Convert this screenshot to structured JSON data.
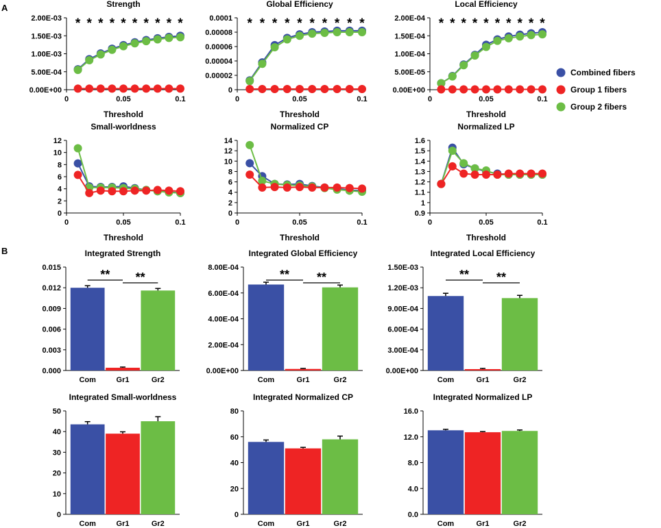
{
  "figure": {
    "panels": [
      "A",
      "B"
    ],
    "colors": {
      "combined": "#3a50a5",
      "group1": "#ee2424",
      "group2": "#6cbd45"
    },
    "legend": [
      {
        "label": "Combined fibers",
        "key": "combined"
      },
      {
        "label": "Group 1 fibers",
        "key": "group1"
      },
      {
        "label": "Group 2 fibers",
        "key": "group2"
      }
    ]
  },
  "chart_data": [
    {
      "type": "line",
      "title": "Strength",
      "xlabel": "Threshold",
      "ylabel": "",
      "x": [
        0.01,
        0.02,
        0.03,
        0.04,
        0.05,
        0.06,
        0.07,
        0.08,
        0.09,
        0.1
      ],
      "xlim": [
        0,
        0.1
      ],
      "xticks": [
        "0",
        "0.05",
        "0.1"
      ],
      "ylim": [
        0,
        0.002
      ],
      "yticks": [
        "0.00E+00",
        "5.00E-04",
        "1.00E-03",
        "1.50E-03",
        "2.00E-03"
      ],
      "star": "*",
      "stars": 10,
      "series": [
        {
          "name": "Combined fibers",
          "key": "combined",
          "values": [
            0.00057,
            0.00085,
            0.00101,
            0.00114,
            0.00124,
            0.00132,
            0.00138,
            0.00143,
            0.00147,
            0.0015
          ]
        },
        {
          "name": "Group 1 fibers",
          "key": "group1",
          "values": [
            3e-05,
            3e-05,
            3e-05,
            3e-05,
            3e-05,
            3e-05,
            3e-05,
            3e-05,
            3e-05,
            3e-05
          ]
        },
        {
          "name": "Group 2 fibers",
          "key": "group2",
          "values": [
            0.00055,
            0.00082,
            0.00098,
            0.00111,
            0.00121,
            0.00129,
            0.00135,
            0.0014,
            0.00144,
            0.00146
          ]
        }
      ]
    },
    {
      "type": "line",
      "title": "Global Efficiency",
      "xlabel": "Threshold",
      "ylabel": "",
      "x": [
        0.01,
        0.02,
        0.03,
        0.04,
        0.05,
        0.06,
        0.07,
        0.08,
        0.09,
        0.1
      ],
      "xlim": [
        0,
        0.1
      ],
      "xticks": [
        "0",
        "0.05",
        "0.1"
      ],
      "ylim": [
        0,
        0.0001
      ],
      "yticks": [
        "0",
        "0.00002",
        "0.00004",
        "0.00006",
        "0.00008",
        "0.0001"
      ],
      "star": "*",
      "stars": 10,
      "series": [
        {
          "name": "Combined fibers",
          "key": "combined",
          "values": [
            1.3e-05,
            3.8e-05,
            6.2e-05,
            7.2e-05,
            7.7e-05,
            8e-05,
            8.1e-05,
            8.2e-05,
            8.2e-05,
            8.2e-05
          ]
        },
        {
          "name": "Group 1 fibers",
          "key": "group1",
          "values": [
            1e-06,
            1e-06,
            1e-06,
            1e-06,
            1e-06,
            1e-06,
            1e-06,
            1e-06,
            1e-06,
            1e-06
          ]
        },
        {
          "name": "Group 2 fibers",
          "key": "group2",
          "values": [
            1.2e-05,
            3.6e-05,
            5.9e-05,
            7e-05,
            7.5e-05,
            7.8e-05,
            7.9e-05,
            8e-05,
            8e-05,
            8e-05
          ]
        }
      ]
    },
    {
      "type": "line",
      "title": "Local Efficiency",
      "xlabel": "Threshold",
      "ylabel": "",
      "x": [
        0.01,
        0.02,
        0.03,
        0.04,
        0.05,
        0.06,
        0.07,
        0.08,
        0.09,
        0.1
      ],
      "xlim": [
        0,
        0.1
      ],
      "xticks": [
        "0",
        "0.05",
        "0.1"
      ],
      "ylim": [
        0,
        0.0002
      ],
      "yticks": [
        "0.00E+00",
        "5.00E-05",
        "1.00E-04",
        "1.50E-04",
        "2.00E-04"
      ],
      "star": "*",
      "stars": 10,
      "series": [
        {
          "name": "Combined fibers",
          "key": "combined",
          "values": [
            1.8e-05,
            3.8e-05,
            7e-05,
            9.7e-05,
            0.000125,
            0.00014,
            0.000148,
            0.000153,
            0.000157,
            0.00016
          ]
        },
        {
          "name": "Group 1 fibers",
          "key": "group1",
          "values": [
            1e-06,
            1e-06,
            1e-06,
            1e-06,
            1e-06,
            1e-06,
            1e-06,
            1e-06,
            1e-06,
            1e-06
          ]
        },
        {
          "name": "Group 2 fibers",
          "key": "group2",
          "values": [
            1.8e-05,
            3.7e-05,
            6.8e-05,
            9.5e-05,
            0.000119,
            0.000136,
            0.000143,
            0.000148,
            0.000152,
            0.000154
          ]
        }
      ]
    },
    {
      "type": "line",
      "title": "Small-worldness",
      "xlabel": "Threshold",
      "ylabel": "",
      "x": [
        0.01,
        0.02,
        0.03,
        0.04,
        0.05,
        0.06,
        0.07,
        0.08,
        0.09,
        0.1
      ],
      "xlim": [
        0,
        0.1
      ],
      "xticks": [
        "0",
        "0.05",
        "0.1"
      ],
      "ylim": [
        0,
        12
      ],
      "yticks": [
        "0",
        "2",
        "4",
        "6",
        "8",
        "10",
        "12"
      ],
      "star": "*",
      "stars": 0,
      "series": [
        {
          "name": "Combined fibers",
          "key": "combined",
          "values": [
            8.2,
            4.4,
            4.3,
            4.3,
            4.4,
            4.1,
            3.8,
            3.6,
            3.5,
            3.3
          ]
        },
        {
          "name": "Group 1 fibers",
          "key": "group1",
          "values": [
            6.3,
            3.3,
            3.7,
            3.6,
            3.6,
            3.7,
            3.7,
            3.8,
            3.7,
            3.6
          ]
        },
        {
          "name": "Group 2 fibers",
          "key": "group2",
          "values": [
            10.7,
            4.2,
            4.2,
            4.2,
            4.1,
            4.0,
            3.8,
            3.6,
            3.4,
            3.3
          ]
        }
      ]
    },
    {
      "type": "line",
      "title": "Normalized CP",
      "xlabel": "Threshold",
      "ylabel": "",
      "x": [
        0.01,
        0.02,
        0.03,
        0.04,
        0.05,
        0.06,
        0.07,
        0.08,
        0.09,
        0.1
      ],
      "xlim": [
        0,
        0.1
      ],
      "xticks": [
        "0",
        "0.05",
        "0.1"
      ],
      "ylim": [
        0,
        14
      ],
      "yticks": [
        "0",
        "2",
        "4",
        "6",
        "8",
        "10",
        "12",
        "14"
      ],
      "star": "*",
      "stars": 0,
      "series": [
        {
          "name": "Combined fibers",
          "key": "combined",
          "values": [
            9.6,
            7.1,
            5.6,
            5.5,
            5.6,
            5.2,
            4.9,
            4.7,
            4.4,
            4.3
          ]
        },
        {
          "name": "Group 1 fibers",
          "key": "group1",
          "values": [
            7.4,
            4.9,
            5.0,
            4.9,
            5.0,
            4.9,
            4.9,
            4.9,
            4.8,
            4.7
          ]
        },
        {
          "name": "Group 2 fibers",
          "key": "group2",
          "values": [
            13.1,
            6.2,
            5.6,
            5.4,
            5.3,
            5.1,
            4.8,
            4.5,
            4.3,
            4.1
          ]
        }
      ]
    },
    {
      "type": "line",
      "title": "Normalized LP",
      "xlabel": "Threshold",
      "ylabel": "",
      "x": [
        0.01,
        0.02,
        0.03,
        0.04,
        0.05,
        0.06,
        0.07,
        0.08,
        0.09,
        0.1
      ],
      "xlim": [
        0,
        0.1
      ],
      "xticks": [
        "0",
        "0.05",
        "0.1"
      ],
      "ylim": [
        0.9,
        1.6
      ],
      "yticks": [
        "0.9",
        "1",
        "1.1",
        "1.2",
        "1.3",
        "1.4",
        "1.5",
        "1.6"
      ],
      "star": "*",
      "stars": 0,
      "series": [
        {
          "name": "Combined fibers",
          "key": "combined",
          "values": [
            1.18,
            1.53,
            1.37,
            1.33,
            1.3,
            1.28,
            1.27,
            1.27,
            1.27,
            1.27
          ]
        },
        {
          "name": "Group 1 fibers",
          "key": "group1",
          "values": [
            1.18,
            1.35,
            1.28,
            1.27,
            1.27,
            1.27,
            1.28,
            1.28,
            1.28,
            1.28
          ]
        },
        {
          "name": "Group 2 fibers",
          "key": "group2",
          "values": [
            1.18,
            1.5,
            1.38,
            1.33,
            1.31,
            1.27,
            1.27,
            1.27,
            1.27,
            1.27
          ]
        }
      ]
    },
    {
      "type": "bar",
      "title": "Integrated Strength",
      "categories": [
        "Com",
        "Gr1",
        "Gr2"
      ],
      "keys": [
        "combined",
        "group1",
        "group2"
      ],
      "values": [
        0.012,
        0.0004,
        0.0116
      ],
      "errors": [
        0.0003,
        0.0001,
        0.0003
      ],
      "ylim": [
        0,
        0.015
      ],
      "yticks": [
        "0.000",
        "0.003",
        "0.006",
        "0.009",
        "0.012",
        "0.015"
      ],
      "significance": [
        "**",
        "**"
      ]
    },
    {
      "type": "bar",
      "title": "Integrated Global Efficiency",
      "categories": [
        "Com",
        "Gr1",
        "Gr2"
      ],
      "keys": [
        "combined",
        "group1",
        "group2"
      ],
      "values": [
        0.000665,
        1.2e-05,
        0.000643
      ],
      "errors": [
        1.8e-05,
        4e-06,
        1.8e-05
      ],
      "ylim": [
        0,
        0.0008
      ],
      "yticks": [
        "0.00E+00",
        "2.00E-04",
        "4.00E-04",
        "6.00E-04",
        "8.00E-04"
      ],
      "significance": [
        "**",
        "**"
      ]
    },
    {
      "type": "bar",
      "title": "Integrated Local Efficiency",
      "categories": [
        "Com",
        "Gr1",
        "Gr2"
      ],
      "keys": [
        "combined",
        "group1",
        "group2"
      ],
      "values": [
        0.00108,
        2e-05,
        0.00105
      ],
      "errors": [
        4e-05,
        1e-05,
        4e-05
      ],
      "ylim": [
        0,
        0.0015
      ],
      "yticks": [
        "0.00E+00",
        "3.00E-04",
        "6.00E-04",
        "9.00E-04",
        "1.20E-03",
        "1.50E-03"
      ],
      "significance": [
        "**",
        "**"
      ]
    },
    {
      "type": "bar",
      "title": "Integrated Small-worldness",
      "categories": [
        "Com",
        "Gr1",
        "Gr2"
      ],
      "keys": [
        "combined",
        "group1",
        "group2"
      ],
      "values": [
        43.5,
        39.0,
        45.0
      ],
      "errors": [
        1.3,
        0.9,
        2.2
      ],
      "ylim": [
        0,
        50
      ],
      "yticks": [
        "0",
        "10",
        "20",
        "30",
        "40",
        "50"
      ],
      "significance": []
    },
    {
      "type": "bar",
      "title": "Integrated Normalized CP",
      "categories": [
        "Com",
        "Gr1",
        "Gr2"
      ],
      "keys": [
        "combined",
        "group1",
        "group2"
      ],
      "values": [
        56.0,
        51.0,
        58.0
      ],
      "errors": [
        1.5,
        0.8,
        2.5
      ],
      "ylim": [
        0,
        80
      ],
      "yticks": [
        "0",
        "20",
        "40",
        "60",
        "80"
      ],
      "significance": []
    },
    {
      "type": "bar",
      "title": "Integrated Normalized LP",
      "categories": [
        "Com",
        "Gr1",
        "Gr2"
      ],
      "keys": [
        "combined",
        "group1",
        "group2"
      ],
      "values": [
        13.0,
        12.7,
        12.9
      ],
      "errors": [
        0.15,
        0.1,
        0.15
      ],
      "ylim": [
        0,
        16
      ],
      "yticks": [
        "0.0",
        "4.0",
        "8.0",
        "12.0",
        "16.0"
      ],
      "significance": []
    }
  ]
}
